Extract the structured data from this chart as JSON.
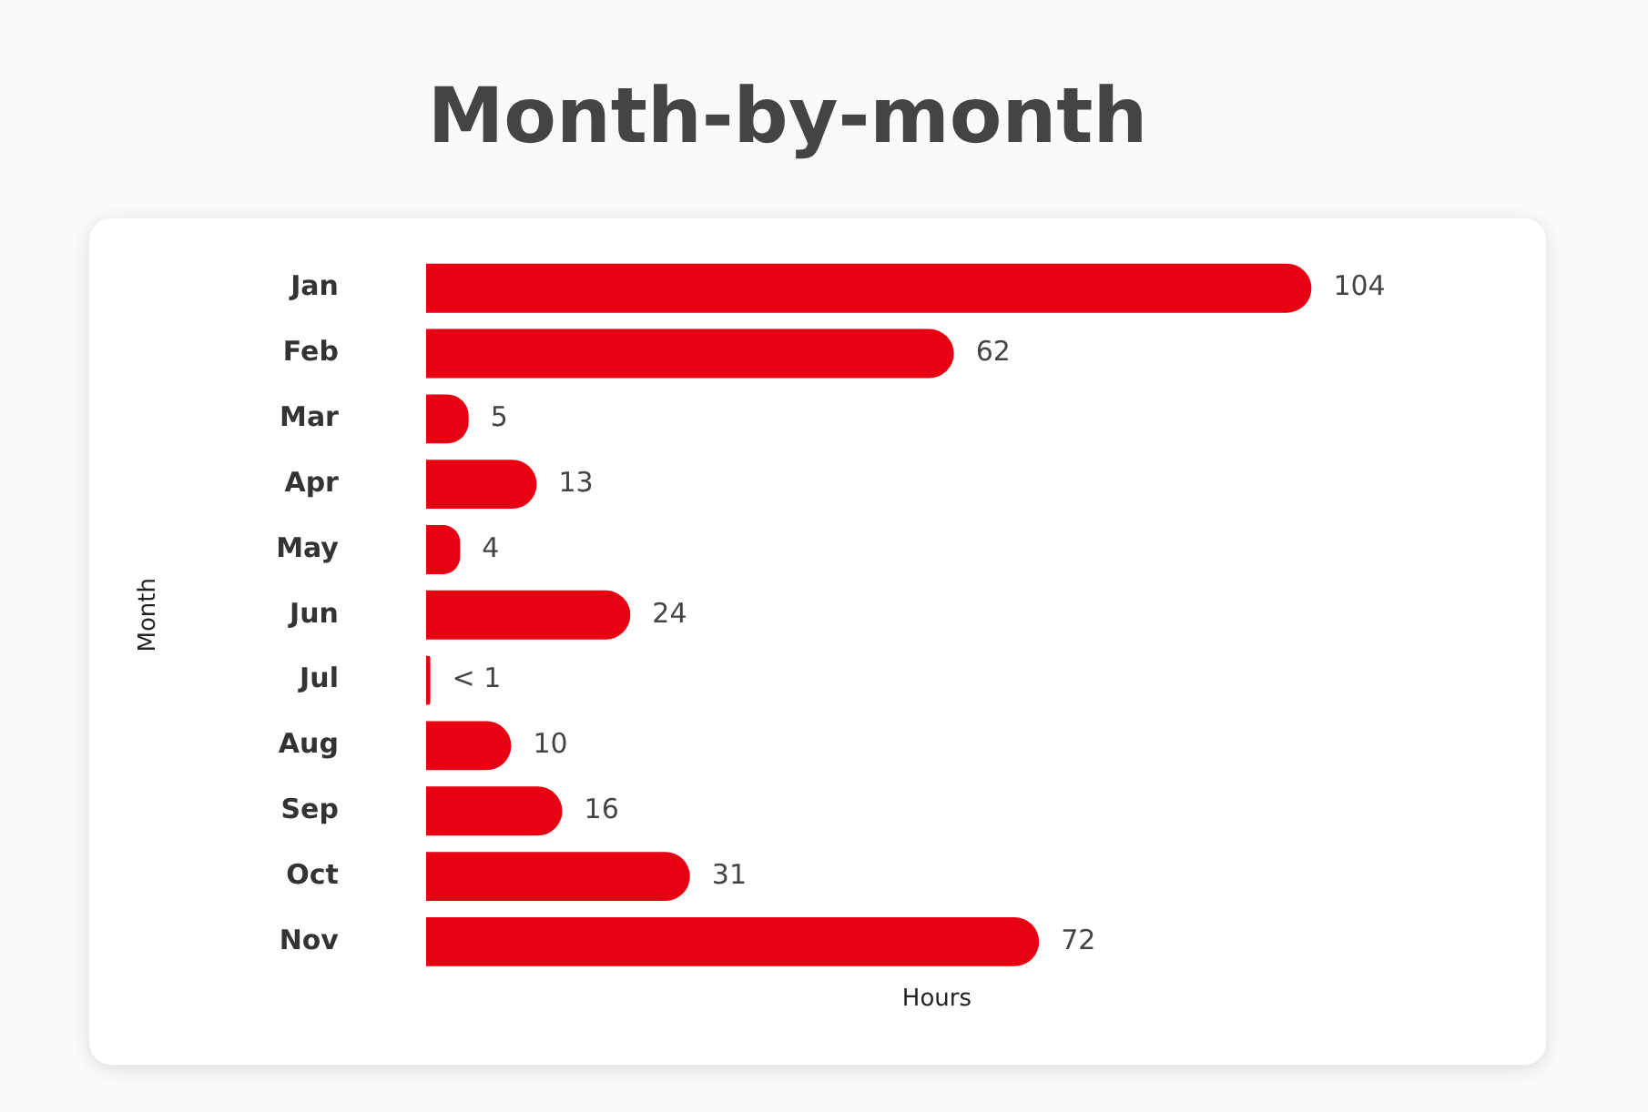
{
  "chart_data": {
    "type": "bar",
    "orientation": "horizontal",
    "title": "Month-by-month",
    "xlabel": "Hours",
    "ylabel": "Month",
    "categories": [
      "Jan",
      "Feb",
      "Mar",
      "Apr",
      "May",
      "Jun",
      "Jul",
      "Aug",
      "Sep",
      "Oct",
      "Nov"
    ],
    "values": [
      104,
      62,
      5,
      13,
      4,
      24,
      0.5,
      10,
      16,
      31,
      72
    ],
    "value_labels": [
      "104",
      "62",
      "5",
      "13",
      "4",
      "24",
      "< 1",
      "10",
      "16",
      "31",
      "72"
    ],
    "color": "#e60012",
    "grid": false,
    "legend": false,
    "tick_labels": "y"
  }
}
